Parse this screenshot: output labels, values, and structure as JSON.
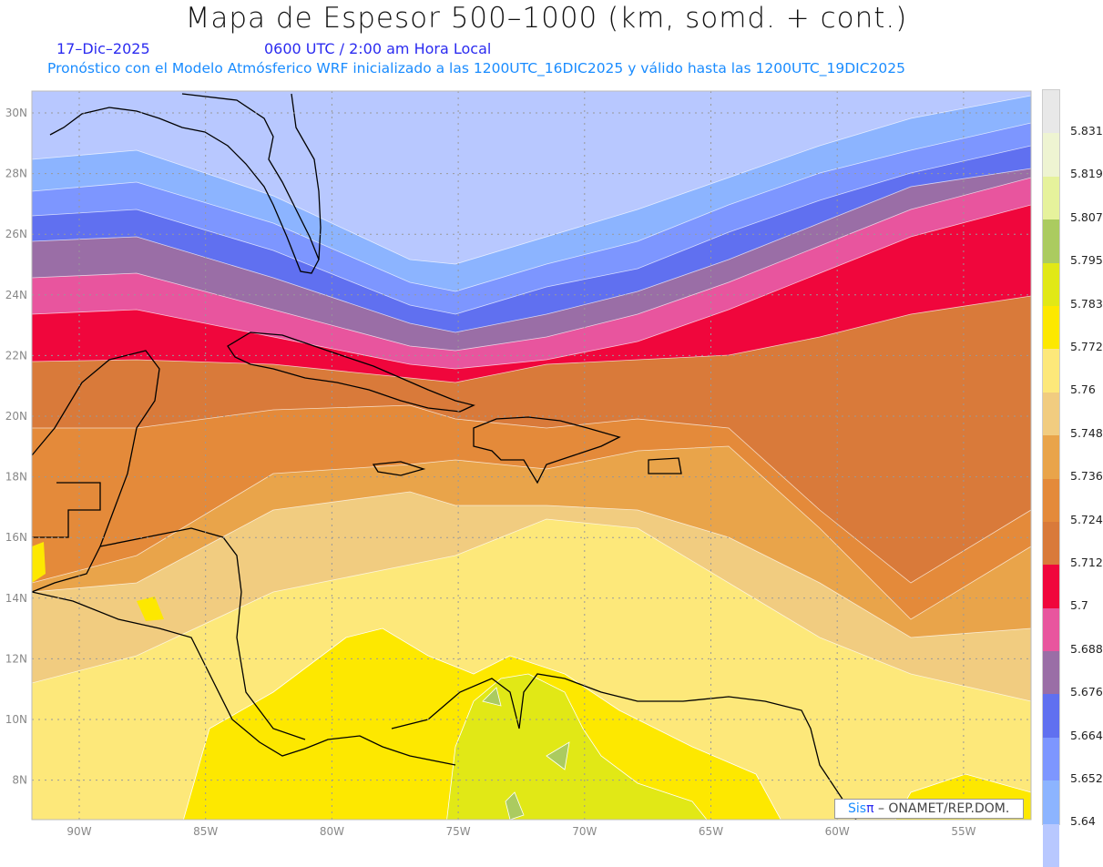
{
  "title": "Mapa de Espesor 500–1000 (km, somd. + cont.)",
  "date": "17–Dic–2025",
  "time": "0600 UTC / 2:00 am Hora Local",
  "forecast_info": "Pronóstico con el Modelo Atmósferico WRF inicializado a las 1200UTC_16DIC2025 y válido hasta las  1200UTC_19DIC2025",
  "credit": {
    "sis": "Sis",
    "pi": "π",
    "org": " –  ONAMET/REP.DOM."
  },
  "x_axis_labels": [
    "90W",
    "85W",
    "80W",
    "75W",
    "70W",
    "65W",
    "60W",
    "55W"
  ],
  "y_axis_labels": [
    "30N",
    "28N",
    "26N",
    "24N",
    "22N",
    "20N",
    "18N",
    "16N",
    "14N",
    "12N",
    "10N",
    "8N"
  ],
  "legend": {
    "levels": [
      "5.831",
      "5.819",
      "5.807",
      "5.795",
      "5.783",
      "5.772",
      "5.76",
      "5.748",
      "5.736",
      "5.724",
      "5.712",
      "5.7",
      "5.688",
      "5.676",
      "5.664",
      "5.652",
      "5.64"
    ],
    "colors": [
      "#e8e8e8",
      "#eef4d2",
      "#e6f29c",
      "#abcb60",
      "#e1e816",
      "#fde800",
      "#fde87a",
      "#f1cc80",
      "#e9a44a",
      "#e48a3a",
      "#d97a3a",
      "#f0063c",
      "#e8559e",
      "#9a6ea6",
      "#6070f0",
      "#7d96ff",
      "#8cb4ff",
      "#b8c8ff"
    ]
  }
}
